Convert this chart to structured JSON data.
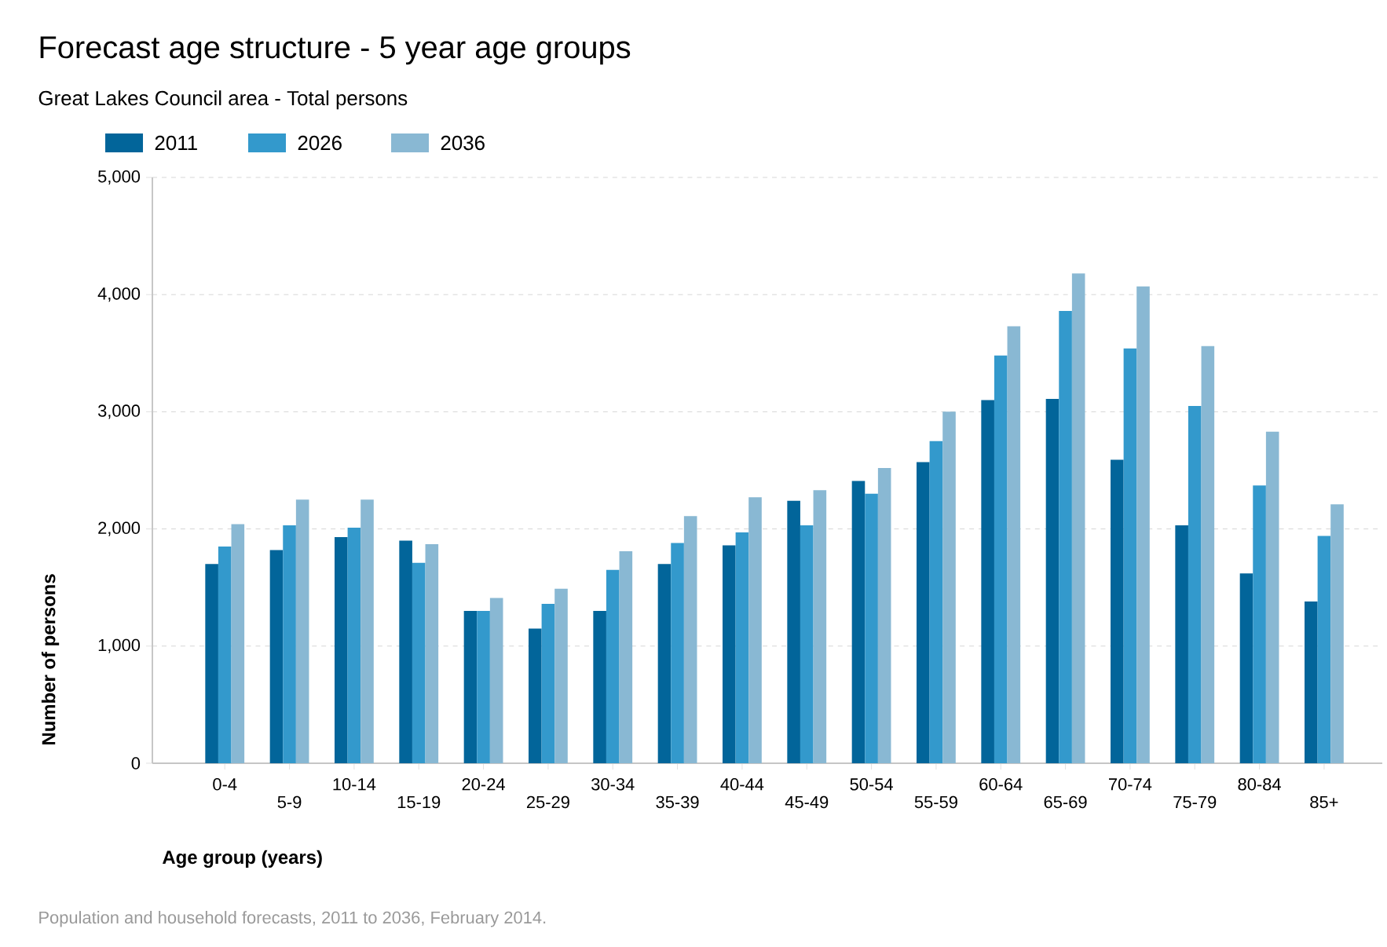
{
  "chart_data": {
    "type": "bar",
    "title": "Forecast age structure - 5 year age groups",
    "subtitle": "Great Lakes Council area - Total persons",
    "xlabel": "Age group (years)",
    "ylabel": "Number of persons",
    "annotations": [
      "Population and household forecasts, 2011 to 2036, February 2014."
    ],
    "categories": [
      "0-4",
      "5-9",
      "10-14",
      "15-19",
      "20-24",
      "25-29",
      "30-34",
      "35-39",
      "40-44",
      "45-49",
      "50-54",
      "55-59",
      "60-64",
      "65-69",
      "70-74",
      "75-79",
      "80-84",
      "85+"
    ],
    "series": [
      {
        "name": "2011",
        "color": "#02659a",
        "values": [
          1700,
          1820,
          1930,
          1900,
          1300,
          1150,
          1300,
          1700,
          1860,
          2240,
          2410,
          2570,
          3100,
          3110,
          2590,
          2030,
          1620,
          1380
        ]
      },
      {
        "name": "2026",
        "color": "#3399cc",
        "values": [
          1850,
          2030,
          2010,
          1710,
          1300,
          1360,
          1650,
          1880,
          1970,
          2030,
          2300,
          2750,
          3480,
          3860,
          3540,
          3050,
          2370,
          1940
        ]
      },
      {
        "name": "2036",
        "color": "#89b8d3",
        "values": [
          2040,
          2250,
          2250,
          1870,
          1410,
          1490,
          1810,
          2110,
          2270,
          2330,
          2520,
          3000,
          3730,
          4180,
          4070,
          3560,
          2830,
          2210
        ]
      }
    ],
    "ylim": [
      0,
      5000
    ],
    "yticks": [
      0,
      {
        "value": 1000,
        "label": "1,000"
      },
      {
        "value": 2000,
        "label": "2,000"
      },
      {
        "value": 3000,
        "label": "3,000"
      },
      {
        "value": 4000,
        "label": "4,000"
      },
      {
        "value": 5000,
        "label": "5,000"
      }
    ],
    "grid": "y",
    "legend": "top left"
  }
}
